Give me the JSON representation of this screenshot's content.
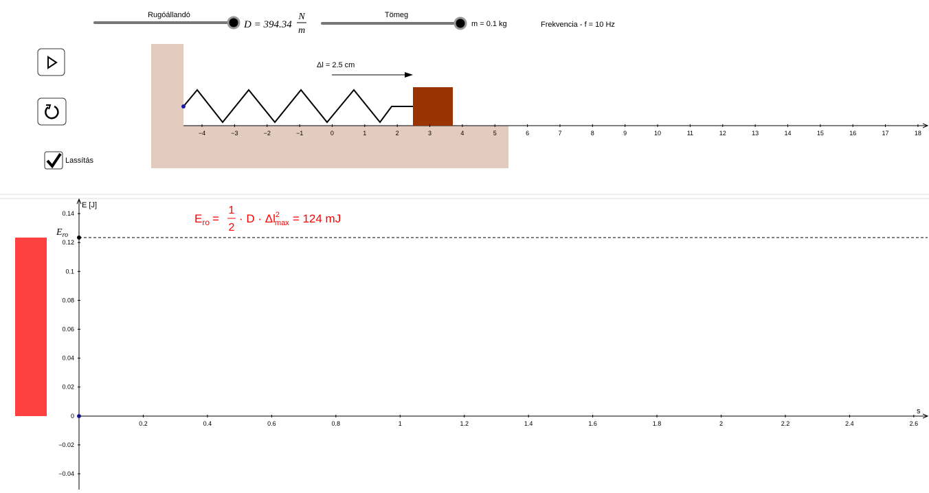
{
  "controls": {
    "spring_slider": {
      "label": "Rugóállandó",
      "value_symbol": "D = 394.34",
      "unit_num": "N",
      "unit_den": "m"
    },
    "mass_slider": {
      "label": "Tömeg",
      "value_text": "m = 0.1 kg"
    },
    "frequency": "Frekvencia - f = 10 Hz",
    "slowdown": "Lassítás"
  },
  "simulation": {
    "displacement": "Δl = 2.5 cm",
    "ruler_ticks": [
      "−4",
      "−3",
      "−2",
      "−1",
      "0",
      "1",
      "2",
      "3",
      "4",
      "5",
      "6",
      "7",
      "8",
      "9",
      "10",
      "11",
      "12",
      "13",
      "14",
      "15",
      "16",
      "17",
      "18"
    ]
  },
  "graph": {
    "y_axis_label": "E [J]",
    "x_axis_label": "s",
    "point_label": {
      "main": "E",
      "sub": "ro"
    },
    "formula": {
      "lhs": "E",
      "lhs_sub": "ro",
      "eq1": "=",
      "frac_num": "1",
      "frac_den": "2",
      "mid": "· D · Δl",
      "sup": "2",
      "sub": "max",
      "rhs": "= 124 mJ"
    },
    "x_ticks": [
      "0.2",
      "0.4",
      "0.6",
      "0.8",
      "1",
      "1.2",
      "1.4",
      "1.6",
      "1.8",
      "2",
      "2.2",
      "2.4",
      "2.6"
    ],
    "y_ticks": [
      "−0.04",
      "−0.02",
      "0",
      "0.02",
      "0.04",
      "0.06",
      "0.08",
      "0.1",
      "0.12",
      "0.14"
    ]
  }
}
